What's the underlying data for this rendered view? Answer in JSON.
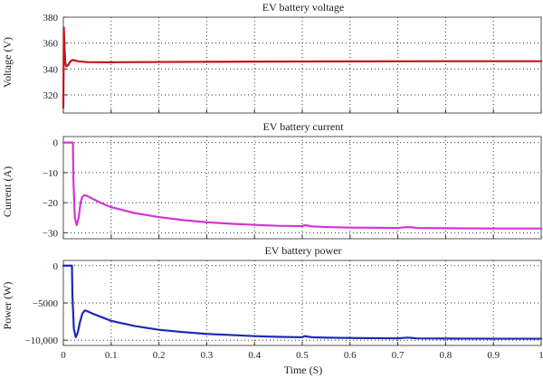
{
  "chart_data": [
    {
      "type": "line",
      "title": "EV battery voltage",
      "xlabel": "",
      "ylabel": "Voltage (V)",
      "xlim": [
        0,
        1
      ],
      "ylim": [
        306,
        380
      ],
      "grid": true,
      "yticks": [
        320,
        340,
        360,
        380
      ],
      "ytick_labels": [
        "320",
        "340",
        "360",
        "380"
      ],
      "xtick_labels": [],
      "series": [
        {
          "color": "#c0141c",
          "x": [
            0,
            0.001,
            0.002,
            0.004,
            0.006,
            0.01,
            0.015,
            0.02,
            0.03,
            0.05,
            0.1,
            0.2,
            0.4,
            0.6,
            0.8,
            1.0
          ],
          "y": [
            310,
            372,
            360,
            345,
            342,
            343,
            346,
            347,
            346,
            345.3,
            345.2,
            345.4,
            345.7,
            345.9,
            346,
            346
          ]
        }
      ]
    },
    {
      "type": "line",
      "title": "EV battery current",
      "xlabel": "",
      "ylabel": "Current (A)",
      "xlim": [
        0,
        1
      ],
      "ylim": [
        -32,
        2
      ],
      "grid": true,
      "yticks": [
        0,
        -10,
        -20,
        -30
      ],
      "ytick_labels": [
        "0",
        "−10",
        "−20",
        "−30"
      ],
      "xtick_labels": [],
      "series": [
        {
          "color": "#d633d6",
          "x": [
            0,
            0.02,
            0.021,
            0.024,
            0.028,
            0.032,
            0.036,
            0.04,
            0.044,
            0.05,
            0.06,
            0.08,
            0.1,
            0.15,
            0.2,
            0.25,
            0.3,
            0.35,
            0.4,
            0.45,
            0.5,
            0.505,
            0.51,
            0.52,
            0.55,
            0.6,
            0.7,
            0.72,
            0.73,
            0.74,
            0.8,
            0.9,
            1.0
          ],
          "y": [
            0,
            0,
            -12,
            -25,
            -27.5,
            -25,
            -20,
            -18,
            -17.5,
            -17.8,
            -18.6,
            -20.2,
            -21.5,
            -23.5,
            -24.8,
            -25.8,
            -26.5,
            -27,
            -27.4,
            -27.7,
            -27.8,
            -27.5,
            -27.6,
            -27.9,
            -28.1,
            -28.3,
            -28.4,
            -28.1,
            -28.2,
            -28.4,
            -28.5,
            -28.6,
            -28.6
          ]
        }
      ]
    },
    {
      "type": "line",
      "title": "EV battery power",
      "xlabel": "Time (S)",
      "ylabel": "Power (W)",
      "xlim": [
        0,
        1
      ],
      "ylim": [
        -10700,
        700
      ],
      "grid": true,
      "yticks": [
        0,
        -5000,
        -10000
      ],
      "ytick_labels": [
        "0",
        "−5000",
        "−10,000"
      ],
      "xticks": [
        0,
        0.1,
        0.2,
        0.3,
        0.4,
        0.5,
        0.6,
        0.7,
        0.8,
        0.9,
        1
      ],
      "xtick_labels": [
        "0",
        "0.1",
        "0.2",
        "0.3",
        "0.4",
        "0.5",
        "0.6",
        "0.7",
        "0.8",
        "0.9",
        "1"
      ],
      "series": [
        {
          "color": "#1b2ab5",
          "x": [
            0,
            0.018,
            0.019,
            0.022,
            0.026,
            0.03,
            0.035,
            0.04,
            0.045,
            0.05,
            0.06,
            0.08,
            0.1,
            0.15,
            0.2,
            0.25,
            0.3,
            0.35,
            0.4,
            0.45,
            0.5,
            0.505,
            0.51,
            0.52,
            0.55,
            0.6,
            0.7,
            0.72,
            0.73,
            0.74,
            0.8,
            0.9,
            1.0
          ],
          "y": [
            0,
            0,
            -4000,
            -8500,
            -9600,
            -9000,
            -7500,
            -6400,
            -6000,
            -6100,
            -6400,
            -6900,
            -7400,
            -8100,
            -8600,
            -8900,
            -9150,
            -9300,
            -9450,
            -9550,
            -9600,
            -9450,
            -9500,
            -9600,
            -9650,
            -9700,
            -9750,
            -9650,
            -9700,
            -9750,
            -9780,
            -9800,
            -9800
          ]
        }
      ]
    }
  ]
}
